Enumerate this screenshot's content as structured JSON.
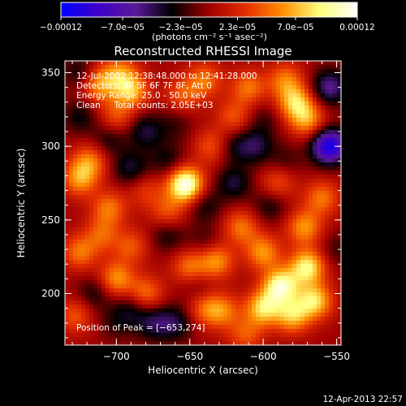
{
  "chart_data": {
    "type": "heatmap",
    "title": "Reconstructed RHESSI Image",
    "xlabel": "Heliocentric X (arcsec)",
    "ylabel": "Heliocentric Y (arcsec)",
    "xlim": [
      -735,
      -547
    ],
    "ylim": [
      165,
      358
    ],
    "x_ticks": [
      -700,
      -650,
      -600,
      -550
    ],
    "y_ticks": [
      200,
      250,
      300,
      350
    ],
    "x_tick_labels": [
      "−700",
      "−650",
      "−600",
      "−550"
    ],
    "y_tick_labels": [
      "200",
      "250",
      "300",
      "350"
    ],
    "colorbar": {
      "range": [
        -0.00012,
        0.00012
      ],
      "tick_values": [
        -0.00012,
        -7e-05,
        -2.3e-05,
        2.3e-05,
        7e-05,
        0.00012
      ],
      "tick_labels": [
        "−0.00012",
        "−7.0e−05",
        "−2.3e−05",
        "2.3e−05",
        "7.0e−05",
        "0.00012"
      ],
      "unit_label": "(photons cm⁻² s⁻¹ asec⁻²)",
      "colors": [
        "#0000ff",
        "#3f00c8",
        "#5a1a9a",
        "#000000",
        "#a00000",
        "#e43000",
        "#ff9000",
        "#ffff80",
        "#ffffff"
      ]
    },
    "annotations": [
      "12-Jul-2002 12:38:48.000 to 12:41:28.000",
      "Detectors: 4F 5F 6F 7F 8F, Att 0",
      "Energy Range: 25.0 - 50.0 keV",
      "Clean     Total counts: 2.05E+03"
    ],
    "peak": {
      "label": "Position of Peak = [−653,274]",
      "x": -653,
      "y": 274
    },
    "sources": [
      {
        "x": -653,
        "y": 274,
        "value": 0.00012
      },
      {
        "x": -588,
        "y": 205,
        "value": 0.0001
      },
      {
        "x": -570,
        "y": 218,
        "value": 9e-05
      },
      {
        "x": -600,
        "y": 190,
        "value": 8e-05
      },
      {
        "x": -580,
        "y": 185,
        "value": 7e-05
      },
      {
        "x": -565,
        "y": 195,
        "value": 8e-05
      },
      {
        "x": -600,
        "y": 228,
        "value": 6e-05
      },
      {
        "x": -615,
        "y": 245,
        "value": 5e-05
      },
      {
        "x": -572,
        "y": 245,
        "value": 6e-05
      },
      {
        "x": -560,
        "y": 265,
        "value": 5e-05
      },
      {
        "x": -578,
        "y": 330,
        "value": 7e-05
      },
      {
        "x": -570,
        "y": 318,
        "value": 6e-05
      },
      {
        "x": -585,
        "y": 345,
        "value": 5e-05
      },
      {
        "x": -610,
        "y": 340,
        "value": 5e-05
      },
      {
        "x": -620,
        "y": 320,
        "value": 4e-05
      },
      {
        "x": -640,
        "y": 345,
        "value": 5e-05
      },
      {
        "x": -655,
        "y": 335,
        "value": 4e-05
      },
      {
        "x": -690,
        "y": 338,
        "value": 7e-05
      },
      {
        "x": -712,
        "y": 342,
        "value": 6e-05
      },
      {
        "x": -698,
        "y": 350,
        "value": 5e-05
      },
      {
        "x": -725,
        "y": 278,
        "value": 6e-05
      },
      {
        "x": -718,
        "y": 290,
        "value": 5e-05
      },
      {
        "x": -705,
        "y": 258,
        "value": 5e-05
      },
      {
        "x": -710,
        "y": 240,
        "value": 4e-05
      },
      {
        "x": -725,
        "y": 228,
        "value": 5e-05
      },
      {
        "x": -690,
        "y": 232,
        "value": 4e-05
      },
      {
        "x": -700,
        "y": 210,
        "value": 6e-05
      },
      {
        "x": -680,
        "y": 200,
        "value": 5e-05
      },
      {
        "x": -650,
        "y": 218,
        "value": 5e-05
      },
      {
        "x": -632,
        "y": 222,
        "value": 6e-05
      },
      {
        "x": -728,
        "y": 185,
        "value": 4e-05
      },
      {
        "x": -640,
        "y": 190,
        "value": 4e-05
      },
      {
        "x": -628,
        "y": 188,
        "value": 5e-05
      },
      {
        "x": -612,
        "y": 172,
        "value": 4e-05
      },
      {
        "x": -635,
        "y": 300,
        "value": 4e-05
      },
      {
        "x": -680,
        "y": 270,
        "value": 3e-05
      },
      {
        "x": -665,
        "y": 255,
        "value": 4e-05
      },
      {
        "x": -590,
        "y": 275,
        "value": 4e-05
      },
      {
        "x": -700,
        "y": 320,
        "value": 4e-05
      },
      {
        "x": -660,
        "y": 315,
        "value": -2e-05
      },
      {
        "x": -555,
        "y": 300,
        "value": -0.00011
      },
      {
        "x": -555,
        "y": 340,
        "value": -6e-05
      },
      {
        "x": -680,
        "y": 310,
        "value": -4e-05
      },
      {
        "x": -690,
        "y": 285,
        "value": -4e-05
      },
      {
        "x": -705,
        "y": 305,
        "value": -3e-05
      },
      {
        "x": -640,
        "y": 260,
        "value": -3e-05
      },
      {
        "x": -665,
        "y": 240,
        "value": -3e-05
      },
      {
        "x": -620,
        "y": 275,
        "value": -4e-05
      },
      {
        "x": -605,
        "y": 300,
        "value": -4e-05
      },
      {
        "x": -595,
        "y": 260,
        "value": -3e-05
      },
      {
        "x": -675,
        "y": 180,
        "value": -4e-05
      },
      {
        "x": -690,
        "y": 190,
        "value": -3e-05
      },
      {
        "x": -715,
        "y": 200,
        "value": -3e-05
      },
      {
        "x": -725,
        "y": 320,
        "value": -3e-05
      },
      {
        "x": -725,
        "y": 350,
        "value": -3e-05
      },
      {
        "x": -665,
        "y": 290,
        "value": -3e-05
      },
      {
        "x": -640,
        "y": 235,
        "value": -2e-05
      },
      {
        "x": -620,
        "y": 300,
        "value": -3e-05
      },
      {
        "x": -585,
        "y": 290,
        "value": -2e-05
      },
      {
        "x": -660,
        "y": 180,
        "value": -4e-05
      },
      {
        "x": -645,
        "y": 205,
        "value": -2e-05
      },
      {
        "x": -600,
        "y": 318,
        "value": -2e-05
      },
      {
        "x": -700,
        "y": 180,
        "value": -2e-05
      },
      {
        "x": -550,
        "y": 230,
        "value": -2e-05
      }
    ]
  },
  "timestamp": "12-Apr-2013 22:57"
}
